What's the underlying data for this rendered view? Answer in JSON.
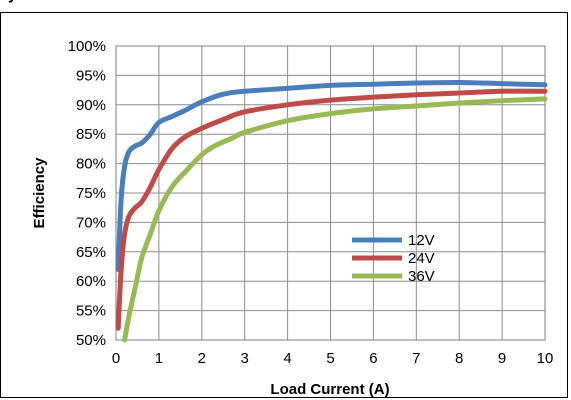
{
  "page": {
    "title": "y"
  },
  "chart_data": {
    "type": "line",
    "title": "",
    "xlabel": "Load Current (A)",
    "ylabel": "Efficiency",
    "xlim": [
      0,
      10
    ],
    "ylim": [
      50,
      100
    ],
    "x_ticks": [
      "0",
      "1",
      "2",
      "3",
      "4",
      "5",
      "6",
      "7",
      "8",
      "9",
      "10"
    ],
    "y_ticks": [
      "50%",
      "55%",
      "60%",
      "65%",
      "70%",
      "75%",
      "80%",
      "85%",
      "90%",
      "95%",
      "100%"
    ],
    "grid": true,
    "legend_position": "right-center",
    "series": [
      {
        "name": "12V",
        "color": "#4a7ebb",
        "x": [
          0.05,
          0.12,
          0.2,
          0.3,
          0.45,
          0.6,
          0.8,
          1.0,
          1.3,
          1.6,
          2.0,
          2.5,
          3.0,
          4.0,
          5.0,
          6.0,
          7.0,
          8.0,
          9.0,
          10.0
        ],
        "y": [
          62,
          74,
          79.5,
          82,
          83,
          83.5,
          85,
          87,
          88,
          89,
          90.5,
          91.8,
          92.3,
          92.8,
          93.3,
          93.5,
          93.7,
          93.8,
          93.6,
          93.4
        ]
      },
      {
        "name": "24V",
        "color": "#be4b48",
        "x": [
          0.05,
          0.12,
          0.2,
          0.3,
          0.45,
          0.6,
          0.8,
          1.0,
          1.3,
          1.6,
          2.0,
          2.5,
          3.0,
          4.0,
          5.0,
          6.0,
          7.0,
          8.0,
          9.0,
          10.0
        ],
        "y": [
          52,
          62,
          68,
          71,
          72.5,
          73.5,
          76,
          79,
          82.5,
          84.5,
          86,
          87.5,
          88.8,
          90,
          90.8,
          91.3,
          91.7,
          92,
          92.3,
          92.3
        ]
      },
      {
        "name": "36V",
        "color": "#98b954",
        "x": [
          0.2,
          0.3,
          0.45,
          0.6,
          0.8,
          1.0,
          1.3,
          1.6,
          2.0,
          2.3,
          2.7,
          3.0,
          4.0,
          5.0,
          6.0,
          7.0,
          8.0,
          9.0,
          10.0
        ],
        "y": [
          50,
          54,
          59,
          64,
          68,
          72,
          76,
          78.5,
          81.5,
          83,
          84.3,
          85.3,
          87.3,
          88.5,
          89.3,
          89.8,
          90.3,
          90.7,
          91
        ]
      }
    ]
  }
}
